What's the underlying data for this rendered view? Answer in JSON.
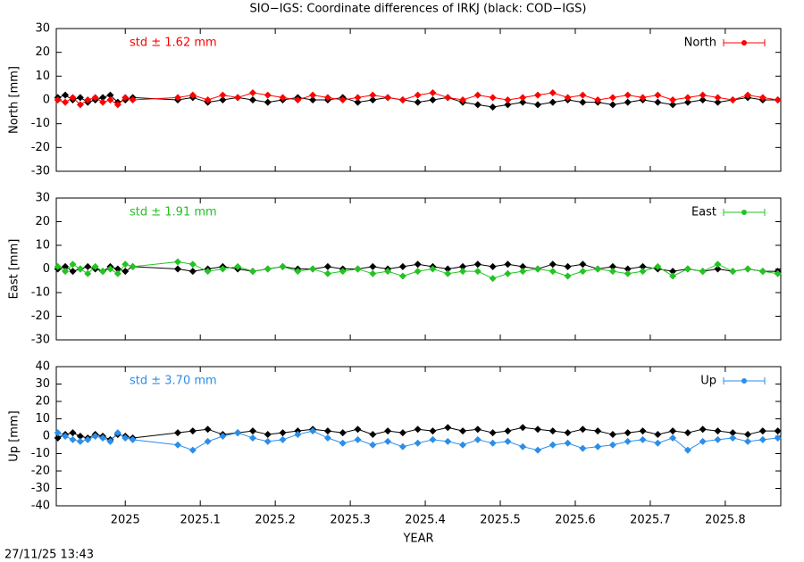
{
  "title": "SIO−IGS: Coordinate differences of IRKJ (black: COD−IGS)",
  "footer": "27/11/25 13:43",
  "chart_data": [
    {
      "type": "line",
      "ylabel": "North [mm]",
      "annotation": "std ± 1.62 mm",
      "xlim": [
        2024.908,
        2025.874
      ],
      "ylim": [
        -30,
        30
      ],
      "yticks": [
        -30,
        -20,
        -10,
        0,
        10,
        20,
        30
      ],
      "x": [
        2024.91,
        2024.92,
        2024.93,
        2024.94,
        2024.95,
        2024.96,
        2024.97,
        2024.98,
        2024.99,
        2025.0,
        2025.01,
        2025.07,
        2025.09,
        2025.11,
        2025.13,
        2025.15,
        2025.17,
        2025.19,
        2025.21,
        2025.23,
        2025.25,
        2025.27,
        2025.29,
        2025.31,
        2025.33,
        2025.35,
        2025.37,
        2025.39,
        2025.41,
        2025.43,
        2025.45,
        2025.47,
        2025.49,
        2025.51,
        2025.53,
        2025.55,
        2025.57,
        2025.59,
        2025.61,
        2025.63,
        2025.65,
        2025.67,
        2025.69,
        2025.71,
        2025.73,
        2025.75,
        2025.77,
        2025.79,
        2025.81,
        2025.83,
        2025.85,
        2025.87
      ],
      "series": [
        {
          "color": "#000000",
          "values": [
            1,
            2,
            0,
            1,
            -1,
            0,
            1,
            2,
            -1,
            0,
            1,
            0,
            1,
            -1,
            0,
            1,
            0,
            -1,
            0,
            1,
            0,
            0,
            1,
            -1,
            0,
            1,
            0,
            -1,
            0,
            1,
            -1,
            -2,
            -3,
            -2,
            -1,
            -2,
            -1,
            0,
            -1,
            -1,
            -2,
            -1,
            0,
            -1,
            -2,
            -1,
            0,
            -1,
            0,
            1,
            0,
            0
          ]
        },
        {
          "name": "North",
          "color": "#ff0000",
          "values": [
            0,
            -1,
            1,
            -2,
            0,
            1,
            -1,
            0,
            -2,
            1,
            0,
            1,
            2,
            0,
            2,
            1,
            3,
            2,
            1,
            0,
            2,
            1,
            0,
            1,
            2,
            1,
            0,
            2,
            3,
            1,
            0,
            2,
            1,
            0,
            1,
            2,
            3,
            1,
            2,
            0,
            1,
            2,
            1,
            2,
            0,
            1,
            2,
            1,
            0,
            2,
            1,
            0
          ]
        }
      ]
    },
    {
      "type": "line",
      "ylabel": "East [mm]",
      "annotation": "std ± 1.91 mm",
      "xlim": [
        2024.908,
        2025.874
      ],
      "ylim": [
        -30,
        30
      ],
      "yticks": [
        -30,
        -20,
        -10,
        0,
        10,
        20,
        30
      ],
      "x": [
        2024.91,
        2024.92,
        2024.93,
        2024.94,
        2024.95,
        2024.96,
        2024.97,
        2024.98,
        2024.99,
        2025.0,
        2025.01,
        2025.07,
        2025.09,
        2025.11,
        2025.13,
        2025.15,
        2025.17,
        2025.19,
        2025.21,
        2025.23,
        2025.25,
        2025.27,
        2025.29,
        2025.31,
        2025.33,
        2025.35,
        2025.37,
        2025.39,
        2025.41,
        2025.43,
        2025.45,
        2025.47,
        2025.49,
        2025.51,
        2025.53,
        2025.55,
        2025.57,
        2025.59,
        2025.61,
        2025.63,
        2025.65,
        2025.67,
        2025.69,
        2025.71,
        2025.73,
        2025.75,
        2025.77,
        2025.79,
        2025.81,
        2025.83,
        2025.85,
        2025.87
      ],
      "series": [
        {
          "color": "#000000",
          "values": [
            0,
            1,
            -1,
            0,
            1,
            0,
            -1,
            1,
            0,
            -1,
            1,
            0,
            -1,
            0,
            1,
            0,
            -1,
            0,
            1,
            0,
            0,
            1,
            0,
            0,
            1,
            0,
            1,
            2,
            1,
            0,
            1,
            2,
            1,
            2,
            1,
            0,
            2,
            1,
            2,
            0,
            1,
            0,
            1,
            0,
            -1,
            0,
            -1,
            0,
            -1,
            0,
            -1,
            -1
          ]
        },
        {
          "name": "East",
          "color": "#22c422",
          "values": [
            1,
            -1,
            2,
            0,
            -2,
            1,
            -1,
            0,
            -2,
            2,
            1,
            3,
            2,
            -1,
            0,
            1,
            -1,
            0,
            1,
            -1,
            0,
            -2,
            -1,
            0,
            -2,
            -1,
            -3,
            -1,
            0,
            -2,
            -1,
            -1,
            -4,
            -2,
            -1,
            0,
            -1,
            -3,
            -1,
            0,
            -1,
            -2,
            -1,
            1,
            -3,
            0,
            -1,
            2,
            -1,
            0,
            -1,
            -2
          ]
        }
      ]
    },
    {
      "type": "line",
      "ylabel": "Up [mm]",
      "annotation": "std ± 3.70 mm",
      "xlabel": "YEAR",
      "xlim": [
        2024.908,
        2025.874
      ],
      "ylim": [
        -40,
        40
      ],
      "yticks": [
        -40,
        -30,
        -20,
        -10,
        0,
        10,
        20,
        30,
        40
      ],
      "xticks": [
        2025,
        2025.1,
        2025.2,
        2025.3,
        2025.4,
        2025.5,
        2025.6,
        2025.7,
        2025.8
      ],
      "x": [
        2024.91,
        2024.92,
        2024.93,
        2024.94,
        2024.95,
        2024.96,
        2024.97,
        2024.98,
        2024.99,
        2025.0,
        2025.01,
        2025.07,
        2025.09,
        2025.11,
        2025.13,
        2025.15,
        2025.17,
        2025.19,
        2025.21,
        2025.23,
        2025.25,
        2025.27,
        2025.29,
        2025.31,
        2025.33,
        2025.35,
        2025.37,
        2025.39,
        2025.41,
        2025.43,
        2025.45,
        2025.47,
        2025.49,
        2025.51,
        2025.53,
        2025.55,
        2025.57,
        2025.59,
        2025.61,
        2025.63,
        2025.65,
        2025.67,
        2025.69,
        2025.71,
        2025.73,
        2025.75,
        2025.77,
        2025.79,
        2025.81,
        2025.83,
        2025.85,
        2025.87
      ],
      "series": [
        {
          "color": "#000000",
          "values": [
            -1,
            1,
            2,
            0,
            -1,
            1,
            0,
            -2,
            1,
            0,
            -1,
            2,
            3,
            4,
            1,
            2,
            3,
            1,
            2,
            3,
            4,
            3,
            2,
            4,
            1,
            3,
            2,
            4,
            3,
            5,
            3,
            4,
            2,
            3,
            5,
            4,
            3,
            2,
            4,
            3,
            1,
            2,
            3,
            1,
            3,
            2,
            4,
            3,
            2,
            1,
            3,
            3
          ]
        },
        {
          "name": "Up",
          "color": "#2b8ee8",
          "values": [
            2,
            0,
            -2,
            -3,
            -2,
            0,
            -1,
            -3,
            2,
            -1,
            -2,
            -5,
            -8,
            -3,
            0,
            2,
            -1,
            -3,
            -2,
            1,
            3,
            -1,
            -4,
            -2,
            -5,
            -3,
            -6,
            -4,
            -2,
            -3,
            -5,
            -2,
            -4,
            -3,
            -6,
            -8,
            -5,
            -4,
            -7,
            -6,
            -5,
            -3,
            -2,
            -4,
            -1,
            -8,
            -3,
            -2,
            -1,
            -3,
            -2,
            -1
          ]
        }
      ]
    }
  ]
}
